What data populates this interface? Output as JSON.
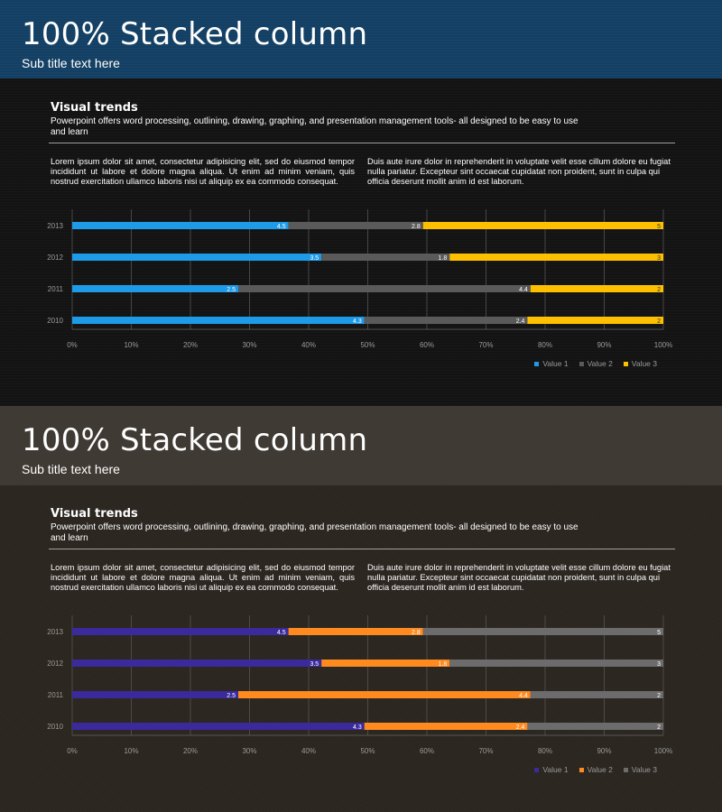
{
  "slides": [
    {
      "header": {
        "title": "100% Stacked column",
        "subtitle": "Sub title text here"
      },
      "section": {
        "heading": "Visual trends",
        "description": "Powerpoint offers word processing, outlining, drawing, graphing, and presentation management tools- all designed to be easy to use and learn"
      },
      "body": {
        "left": "Lorem ipsum dolor sit amet, consectetur adipisicing elit, sed do eiusmod tempor incididunt ut labore et dolore magna aliqua. Ut enim ad minim veniam, quis nostrud exercitation ullamco laboris nisi ut aliquip ex ea commodo consequat.",
        "right": "Duis aute irure dolor in reprehenderit in voluptate velit esse cillum dolore eu fugiat nulla pariatur. Excepteur sint occaecat cupidatat non proident, sunt in culpa qui officia deserunt mollit anim id est laborum."
      },
      "colors": {
        "header_bg": "#123f63",
        "series": [
          "#1e9be8",
          "#5a5a5a",
          "#fcc000"
        ],
        "segment_label": [
          "#ffffff",
          "#ffffff",
          "#333333"
        ]
      }
    },
    {
      "header": {
        "title": "100% Stacked column",
        "subtitle": "Sub title text here"
      },
      "section": {
        "heading": "Visual trends",
        "description": "Powerpoint offers word processing, outlining, drawing, graphing, and presentation management tools- all designed to be easy to use and learn"
      },
      "body": {
        "left": "Lorem ipsum dolor sit amet, consectetur adipisicing elit, sed do eiusmod tempor incididunt ut labore et dolore magna aliqua. Ut enim ad minim veniam, quis nostrud exercitation ullamco laboris nisi ut aliquip ex ea commodo consequat.",
        "right": "Duis aute irure dolor in reprehenderit in voluptate velit esse cillum dolore eu fugiat nulla pariatur. Excepteur sint occaecat cupidatat non proident, sunt in culpa qui officia deserunt mollit anim id est laborum."
      },
      "colors": {
        "header_bg": "#3f3a33",
        "series": [
          "#3a2a9c",
          "#ff8a1f",
          "#6c6c6c"
        ],
        "segment_label": [
          "#ffffff",
          "#ffffff",
          "#ffffff"
        ]
      }
    }
  ],
  "chart_data": [
    {
      "type": "bar",
      "stacked": "percent",
      "orientation": "horizontal",
      "categories": [
        "2013",
        "2012",
        "2011",
        "2010"
      ],
      "series": [
        {
          "name": "Value  1",
          "values": [
            4.5,
            3.5,
            2.5,
            4.3
          ]
        },
        {
          "name": "Value  2",
          "values": [
            2.8,
            1.8,
            4.4,
            2.4
          ]
        },
        {
          "name": "Value  3",
          "values": [
            5,
            3,
            2,
            2
          ]
        }
      ],
      "x_ticks": [
        "0%",
        "10%",
        "20%",
        "30%",
        "40%",
        "50%",
        "60%",
        "70%",
        "80%",
        "90%",
        "100%"
      ],
      "xlim": [
        0,
        100
      ],
      "grid": true,
      "legend_position": "bottom-right"
    },
    {
      "type": "bar",
      "stacked": "percent",
      "orientation": "horizontal",
      "categories": [
        "2013",
        "2012",
        "2011",
        "2010"
      ],
      "series": [
        {
          "name": "Value  1",
          "values": [
            4.5,
            3.5,
            2.5,
            4.3
          ]
        },
        {
          "name": "Value  2",
          "values": [
            2.8,
            1.8,
            4.4,
            2.4
          ]
        },
        {
          "name": "Value  3",
          "values": [
            5,
            3,
            2,
            2
          ]
        }
      ],
      "x_ticks": [
        "0%",
        "10%",
        "20%",
        "30%",
        "40%",
        "50%",
        "60%",
        "70%",
        "80%",
        "90%",
        "100%"
      ],
      "xlim": [
        0,
        100
      ],
      "grid": true,
      "legend_position": "bottom-right"
    }
  ]
}
